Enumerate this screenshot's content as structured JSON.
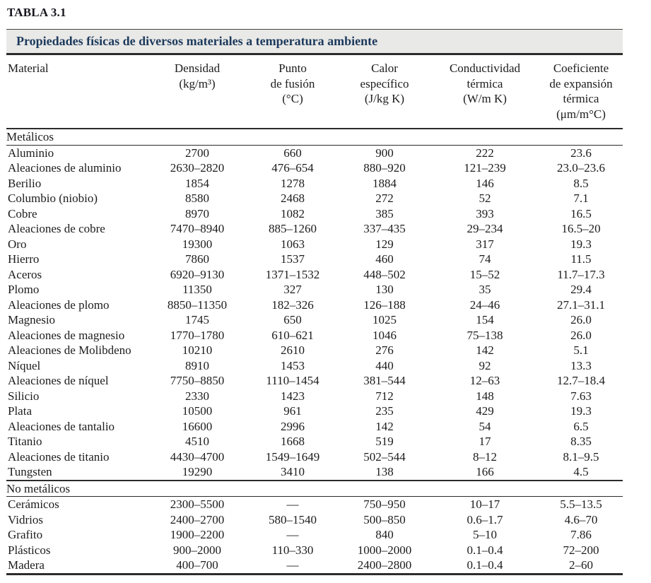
{
  "document": {
    "label": "TABLA 3.1",
    "title": "Propiedades físicas de diversos materiales a temperatura ambiente"
  },
  "table": {
    "columns": [
      {
        "id": "material",
        "lines": [
          "Material"
        ]
      },
      {
        "id": "densidad",
        "lines": [
          "Densidad",
          "(kg/m³)"
        ]
      },
      {
        "id": "punto-de-fusion",
        "lines": [
          "Punto",
          "de fusión",
          "(°C)"
        ]
      },
      {
        "id": "calor-especifico",
        "lines": [
          "Calor",
          "específico",
          "(J/kg K)"
        ]
      },
      {
        "id": "conductividad-termica",
        "lines": [
          "Conductividad",
          "térmica",
          "(W/m K)"
        ]
      },
      {
        "id": "coeficiente-expansion-termica",
        "lines": [
          "Coeficiente",
          "de expansión",
          "térmica",
          "(μm/m°C)"
        ]
      }
    ],
    "sections": [
      {
        "id": "metalicos",
        "name": "Metálicos",
        "rows": [
          [
            "Aluminio",
            "2700",
            "660",
            "900",
            "222",
            "23.6"
          ],
          [
            "Aleaciones de aluminio",
            "2630–2820",
            "476–654",
            "880–920",
            "121–239",
            "23.0–23.6"
          ],
          [
            "Berilio",
            "1854",
            "1278",
            "1884",
            "146",
            "8.5"
          ],
          [
            "Columbio (niobio)",
            "8580",
            "2468",
            "272",
            "52",
            "7.1"
          ],
          [
            "Cobre",
            "8970",
            "1082",
            "385",
            "393",
            "16.5"
          ],
          [
            "Aleaciones de cobre",
            "7470–8940",
            "885–1260",
            "337–435",
            "29–234",
            "16.5–20"
          ],
          [
            "Oro",
            "19300",
            "1063",
            "129",
            "317",
            "19.3"
          ],
          [
            "Hierro",
            "7860",
            "1537",
            "460",
            "74",
            "11.5"
          ],
          [
            "Aceros",
            "6920–9130",
            "1371–1532",
            "448–502",
            "15–52",
            "11.7–17.3"
          ],
          [
            "Plomo",
            "11350",
            "327",
            "130",
            "35",
            "29.4"
          ],
          [
            "Aleaciones de plomo",
            "8850–11350",
            "182–326",
            "126–188",
            "24–46",
            "27.1–31.1"
          ],
          [
            "Magnesio",
            "1745",
            "650",
            "1025",
            "154",
            "26.0"
          ],
          [
            "Aleaciones de magnesio",
            "1770–1780",
            "610–621",
            "1046",
            "75–138",
            "26.0"
          ],
          [
            "Aleaciones de Molibdeno",
            "10210",
            "2610",
            "276",
            "142",
            "5.1"
          ],
          [
            "Níquel",
            "8910",
            "1453",
            "440",
            "92",
            "13.3"
          ],
          [
            "Aleaciones de níquel",
            "7750–8850",
            "1110–1454",
            "381–544",
            "12–63",
            "12.7–18.4"
          ],
          [
            "Silicio",
            "2330",
            "1423",
            "712",
            "148",
            "7.63"
          ],
          [
            "Plata",
            "10500",
            "961",
            "235",
            "429",
            "19.3"
          ],
          [
            "Aleaciones de tantalio",
            "16600",
            "2996",
            "142",
            "54",
            "6.5"
          ],
          [
            "Titanio",
            "4510",
            "1668",
            "519",
            "17",
            "8.35"
          ],
          [
            "Aleaciones de titanio",
            "4430–4700",
            "1549–1649",
            "502–544",
            "8–12",
            "8.1–9.5"
          ],
          [
            "Tungsten",
            "19290",
            "3410",
            "138",
            "166",
            "4.5"
          ]
        ]
      },
      {
        "id": "no-metalicos",
        "name": "No metálicos",
        "rows": [
          [
            "Cerámicos",
            "2300–5500",
            "—",
            "750–950",
            "10–17",
            "5.5–13.5"
          ],
          [
            "Vidrios",
            "2400–2700",
            "580–1540",
            "500–850",
            "0.6–1.7",
            "4.6–70"
          ],
          [
            "Grafito",
            "1900–2200",
            "—",
            "840",
            "5–10",
            "7.86"
          ],
          [
            "Plásticos",
            "900–2000",
            "110–330",
            "1000–2000",
            "0.1–0.4",
            "72–200"
          ],
          [
            "Madera",
            "400–700",
            "—",
            "2400–2800",
            "0.1–0.4",
            "2–60"
          ]
        ]
      }
    ]
  }
}
